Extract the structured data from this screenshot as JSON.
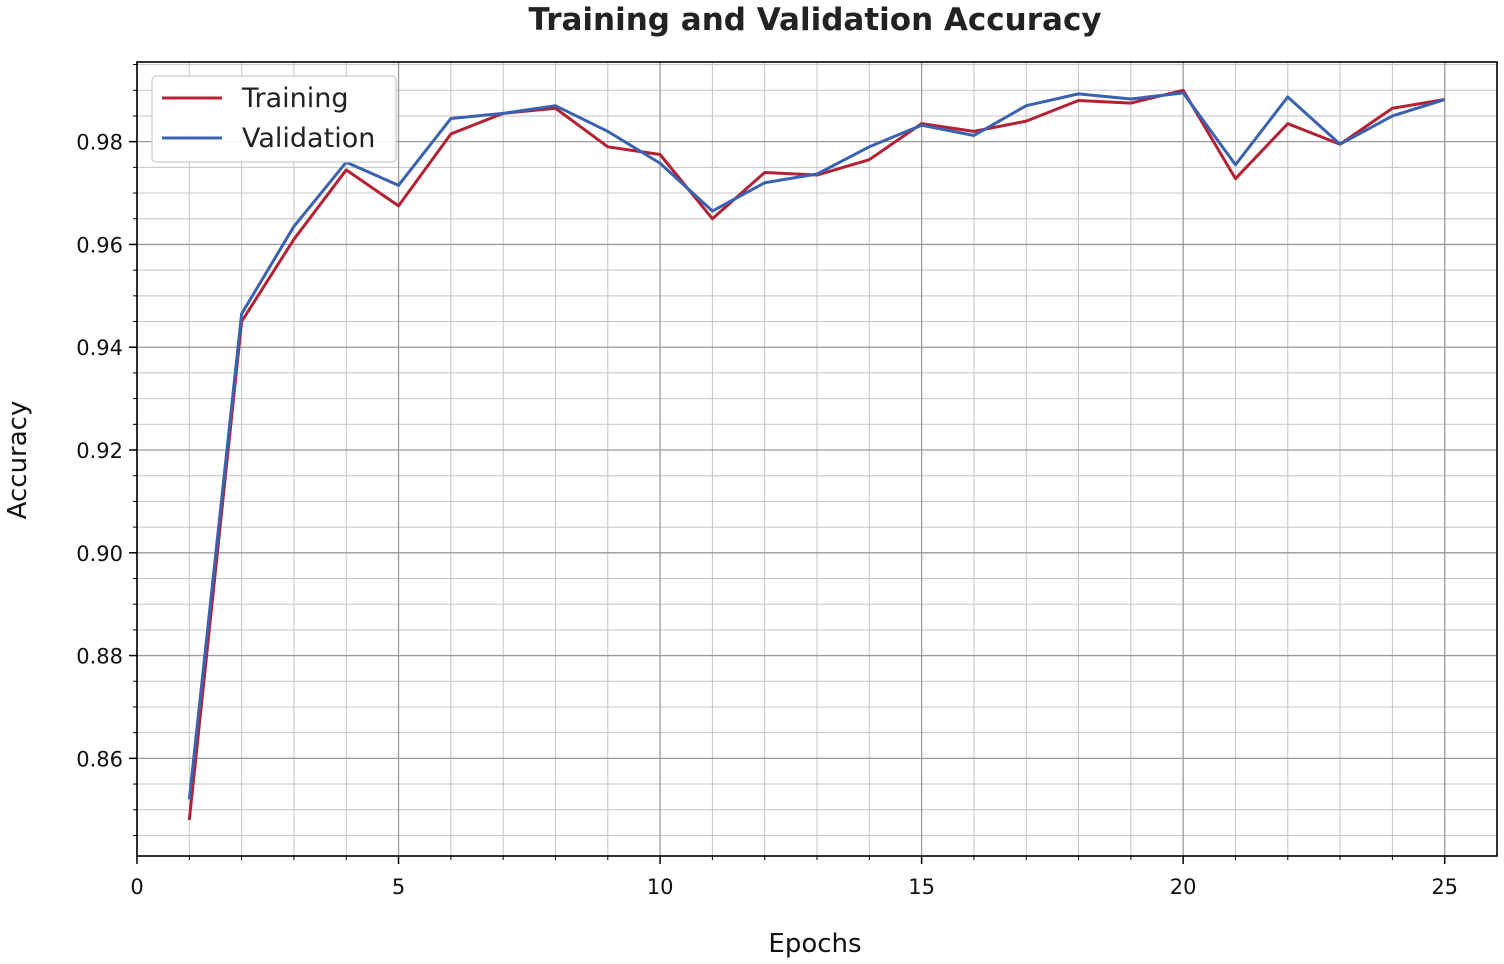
{
  "chart_data": {
    "type": "line",
    "title": "Training and Validation Accuracy",
    "xlabel": "Epochs",
    "ylabel": "Accuracy",
    "xlim": [
      0,
      26
    ],
    "ylim": [
      0.841,
      0.9955
    ],
    "xticks": [
      0,
      5,
      10,
      15,
      20,
      25
    ],
    "xtick_labels": [
      "0",
      "5",
      "10",
      "15",
      "20",
      "25"
    ],
    "yticks": [
      0.86,
      0.88,
      0.9,
      0.92,
      0.94,
      0.96,
      0.98
    ],
    "ytick_labels": [
      "0.86",
      "0.88",
      "0.90",
      "0.92",
      "0.94",
      "0.96",
      "0.98"
    ],
    "grid": true,
    "minor_grid": true,
    "legend_position": "top-left",
    "x": [
      1,
      2,
      3,
      4,
      5,
      6,
      7,
      8,
      9,
      10,
      11,
      12,
      13,
      14,
      15,
      16,
      17,
      18,
      19,
      20,
      21,
      22,
      23,
      24,
      25
    ],
    "series": [
      {
        "name": "Training",
        "color": "#b22234",
        "values": [
          0.848,
          0.945,
          0.961,
          0.9745,
          0.9675,
          0.9815,
          0.9855,
          0.9865,
          0.979,
          0.9775,
          0.965,
          0.974,
          0.9735,
          0.9765,
          0.9835,
          0.982,
          0.984,
          0.988,
          0.9875,
          0.99,
          0.9728,
          0.9835,
          0.9795,
          0.9865,
          0.9882
        ]
      },
      {
        "name": "Validation",
        "color": "#3a62b0",
        "values": [
          0.852,
          0.9465,
          0.9635,
          0.976,
          0.9715,
          0.9845,
          0.9855,
          0.987,
          0.982,
          0.9758,
          0.9665,
          0.972,
          0.9737,
          0.979,
          0.9832,
          0.9812,
          0.987,
          0.9893,
          0.9883,
          0.9895,
          0.9755,
          0.9887,
          0.9795,
          0.985,
          0.9882
        ]
      }
    ]
  }
}
